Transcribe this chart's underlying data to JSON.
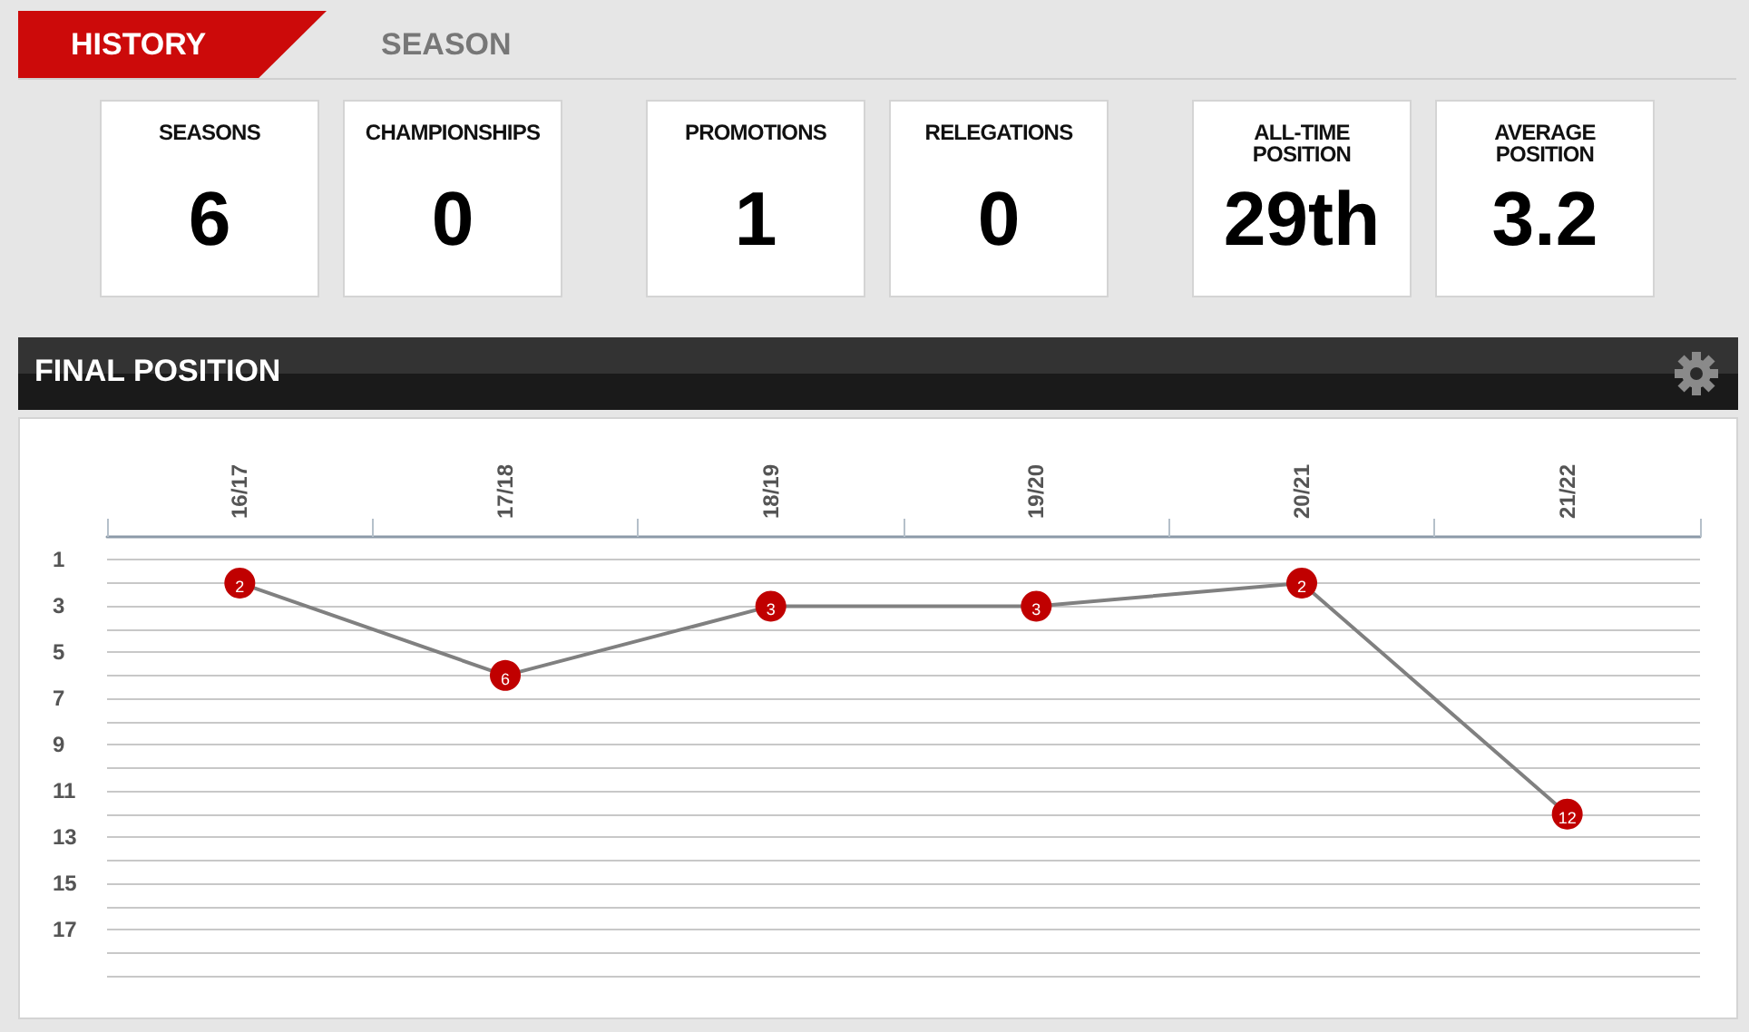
{
  "chart_data": [
    {
      "type": "other",
      "annotations": [
        "HISTORY",
        "SEASON"
      ],
      "categories": [
        "SEASONS",
        "CHAMPIONSHIPS",
        "PROMOTIONS",
        "RELEGATIONS",
        "ALL-TIME POSITION",
        "AVERAGE POSITION"
      ],
      "value_labels": [
        "6",
        "0",
        "1",
        "0",
        "29th",
        "3.2"
      ]
    },
    {
      "type": "line",
      "title": "FINAL POSITION",
      "categories": [
        "16/17",
        "17/18",
        "18/19",
        "19/20",
        "20/21",
        "21/22"
      ],
      "series": [
        {
          "color": "#c00000",
          "values": [
            2,
            6,
            3,
            3,
            2,
            12
          ]
        }
      ],
      "ylim": [
        19,
        0
      ],
      "yticks": [
        1,
        {
          "value": 2,
          "label": null
        },
        3,
        {
          "value": 4,
          "label": null
        },
        5,
        {
          "value": 6,
          "label": null
        },
        7,
        {
          "value": 8,
          "label": null
        },
        9,
        {
          "value": 10,
          "label": null
        },
        11,
        {
          "value": 12,
          "label": null
        },
        13,
        {
          "value": 14,
          "label": null
        },
        15,
        {
          "value": 16,
          "label": null
        },
        17,
        {
          "value": 18,
          "label": null
        },
        {
          "value": 19,
          "label": null
        }
      ],
      "grid": "y",
      "marker": "circle",
      "line_style": "solid",
      "data_labels": true
    }
  ]
}
